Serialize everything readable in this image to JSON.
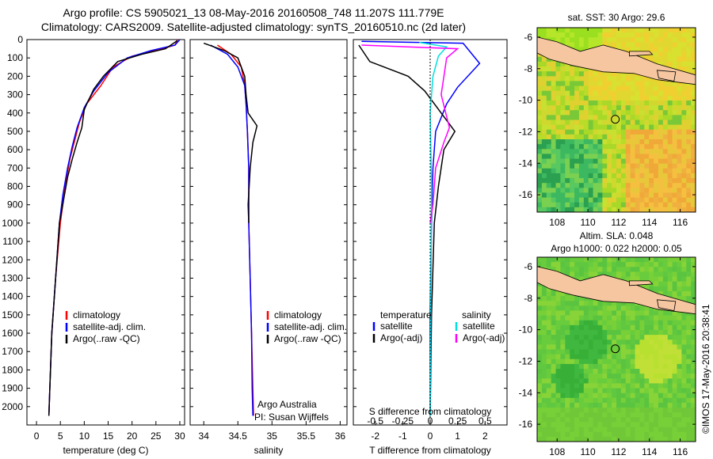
{
  "header": {
    "line1": "Argo profile: CS 5905021_13 08-May-2016 20160508_748 11.207S 111.779E",
    "line2": "Climatology: CARS2009. Satellite-adjusted climatology: synTS_20160510.nc (2d later)"
  },
  "timestamp": "©IMOS 17-May-2016 20:38:41",
  "colors": {
    "climatology": "#ff0000",
    "satellite": "#0000ff",
    "argo": "#000000",
    "sat_s": "#00e0e0",
    "argo_s": "#ff00ff"
  },
  "chart_data": [
    {
      "type": "line",
      "xlabel": "temperature (deg C)",
      "ylabel": "",
      "xticks": [
        "0",
        "5",
        "10",
        "15",
        "20",
        "25",
        "30"
      ],
      "xlim": [
        -2,
        31
      ],
      "ylim": [
        0,
        2100
      ],
      "yticks": [
        "0",
        "100",
        "200",
        "300",
        "400",
        "500",
        "600",
        "700",
        "800",
        "900",
        "1000",
        "1100",
        "1200",
        "1300",
        "1400",
        "1500",
        "1600",
        "1700",
        "1800",
        "1900",
        "2000"
      ],
      "legend": [
        "climatology",
        "satellite-adj. clim.",
        "Argo(..raw -QC)"
      ],
      "series": [
        {
          "name": "climatology",
          "values": [
            [
              29.5,
              0
            ],
            [
              29,
              30
            ],
            [
              25,
              60
            ],
            [
              20,
              90
            ],
            [
              16,
              150
            ],
            [
              13.5,
              250
            ],
            [
              10.5,
              350
            ],
            [
              9,
              450
            ],
            [
              8,
              550
            ],
            [
              7,
              650
            ],
            [
              6,
              800
            ],
            [
              5,
              1000
            ],
            [
              4,
              1300
            ],
            [
              3.2,
              1600
            ],
            [
              2.8,
              1900
            ],
            [
              2.6,
              2050
            ]
          ]
        },
        {
          "name": "satellite-adj. clim.",
          "values": [
            [
              30,
              0
            ],
            [
              29,
              30
            ],
            [
              24,
              60
            ],
            [
              19,
              100
            ],
            [
              15,
              180
            ],
            [
              12,
              280
            ],
            [
              10,
              370
            ],
            [
              8.5,
              480
            ],
            [
              7.5,
              580
            ],
            [
              6.5,
              700
            ],
            [
              5.5,
              850
            ],
            [
              4.8,
              1000
            ],
            [
              4,
              1300
            ],
            [
              3.2,
              1600
            ],
            [
              2.8,
              1900
            ],
            [
              2.6,
              2050
            ]
          ]
        },
        {
          "name": "Argo(..raw -QC)",
          "values": [
            [
              29.5,
              5
            ],
            [
              27,
              50
            ],
            [
              22,
              80
            ],
            [
              17,
              120
            ],
            [
              14,
              200
            ],
            [
              12,
              270
            ],
            [
              10,
              380
            ],
            [
              9.5,
              480
            ],
            [
              8.5,
              560
            ],
            [
              7.5,
              650
            ],
            [
              6.5,
              750
            ],
            [
              5.5,
              900
            ],
            [
              4.8,
              1000
            ],
            [
              4,
              1300
            ],
            [
              3.2,
              1600
            ],
            [
              2.8,
              1900
            ],
            [
              2.6,
              2050
            ]
          ]
        }
      ]
    },
    {
      "type": "line",
      "xlabel": "salinity",
      "xticks": [
        "34",
        "34.5",
        "35",
        "35.5",
        "36"
      ],
      "xlim": [
        33.8,
        36.1
      ],
      "ylim": [
        0,
        2100
      ],
      "legend": [
        "climatology",
        "satellite-adj. clim.",
        "Argo(..raw -QC)"
      ],
      "annotations": [
        "Argo Australia",
        "PI: Susan Wijffels"
      ],
      "series": [
        {
          "name": "climatology",
          "values": [
            [
              34.2,
              30
            ],
            [
              34.4,
              80
            ],
            [
              34.55,
              150
            ],
            [
              34.6,
              250
            ],
            [
              34.62,
              350
            ],
            [
              34.64,
              500
            ],
            [
              34.66,
              700
            ],
            [
              34.66,
              1000
            ],
            [
              34.68,
              1300
            ],
            [
              34.7,
              1600
            ],
            [
              34.72,
              1900
            ],
            [
              34.73,
              2050
            ]
          ]
        },
        {
          "name": "satellite-adj. clim.",
          "values": [
            [
              34.1,
              30
            ],
            [
              34.35,
              80
            ],
            [
              34.5,
              150
            ],
            [
              34.6,
              250
            ],
            [
              34.62,
              350
            ],
            [
              34.64,
              500
            ],
            [
              34.66,
              700
            ],
            [
              34.66,
              1000
            ],
            [
              34.68,
              1300
            ],
            [
              34.7,
              1600
            ],
            [
              34.71,
              1900
            ],
            [
              34.72,
              2050
            ]
          ]
        },
        {
          "name": "Argo(..raw -QC)",
          "values": [
            [
              34.0,
              20
            ],
            [
              34.3,
              60
            ],
            [
              34.5,
              100
            ],
            [
              34.6,
              200
            ],
            [
              34.62,
              300
            ],
            [
              34.65,
              400
            ],
            [
              34.78,
              470
            ],
            [
              34.72,
              560
            ],
            [
              34.68,
              700
            ],
            [
              34.65,
              900
            ],
            [
              34.66,
              1000
            ]
          ]
        }
      ]
    },
    {
      "type": "line",
      "xlabel": "T difference from climatology",
      "xlabel_top": "S difference from climatology",
      "xticks": [
        "-2",
        "-1",
        "0",
        "1",
        "2"
      ],
      "xticks_top": [
        "-0.5",
        "-0.25",
        "0",
        "0.25",
        "0.5"
      ],
      "xlim": [
        -2.8,
        2.8
      ],
      "ylim": [
        0,
        2100
      ],
      "legend_left_title": "temperature",
      "legend_right_title": "salinity",
      "legend": [
        "satellite",
        "Argo(-adj)",
        "satellite",
        "Argo(-adj)"
      ],
      "series": [
        {
          "name": "satellite",
          "values": [
            [
              -2.5,
              10
            ],
            [
              1.2,
              20
            ],
            [
              1.8,
              130
            ],
            [
              1.0,
              260
            ],
            [
              0.6,
              350
            ],
            [
              0.2,
              500
            ],
            [
              0.1,
              700
            ],
            [
              0.05,
              1000
            ],
            [
              0,
              1500
            ],
            [
              0,
              2050
            ]
          ]
        },
        {
          "name": "Argo(-adj)",
          "values": [
            [
              -2.6,
              30
            ],
            [
              -2.2,
              120
            ],
            [
              -0.8,
              200
            ],
            [
              -0.2,
              280
            ],
            [
              0.4,
              400
            ],
            [
              0.9,
              500
            ],
            [
              0.5,
              600
            ],
            [
              0.3,
              800
            ],
            [
              0.15,
              1000
            ],
            [
              0.05,
              1500
            ],
            [
              0,
              2050
            ]
          ]
        },
        {
          "name": "satellite",
          "values": [
            [
              -0.4,
              15
            ],
            [
              0.6,
              40
            ],
            [
              0.3,
              90
            ],
            [
              0.1,
              200
            ],
            [
              0.0,
              400
            ],
            [
              0.05,
              800
            ],
            [
              0.02,
              1500
            ],
            [
              0,
              2050
            ]
          ]
        },
        {
          "name": "Argo(-adj)",
          "values": [
            [
              -2.5,
              30
            ],
            [
              1.0,
              50
            ],
            [
              0.6,
              100
            ],
            [
              0.4,
              300
            ],
            [
              0.7,
              480
            ],
            [
              0.5,
              560
            ],
            [
              0.2,
              700
            ],
            [
              0.1,
              900
            ],
            [
              0.0,
              1000
            ]
          ]
        }
      ]
    },
    {
      "type": "heatmap",
      "title": "sat. SST: 30 Argo: 29.6",
      "xticks": [
        "108",
        "110",
        "112",
        "114",
        "116"
      ],
      "yticks": [
        "-6",
        "-8",
        "-10",
        "-12",
        "-14",
        "-16"
      ],
      "xlim": [
        106.7,
        117
      ],
      "ylim": [
        -17.1,
        -5.4
      ],
      "marker": [
        111.78,
        -11.21
      ]
    },
    {
      "type": "heatmap",
      "title_line1": "Altim. SLA: 0.048",
      "title_line2": "Argo h1000: 0.022 h2000: 0.05",
      "xticks": [
        "108",
        "110",
        "112",
        "114",
        "116"
      ],
      "yticks": [
        "-6",
        "-8",
        "-10",
        "-12",
        "-14",
        "-16"
      ],
      "xlim": [
        106.7,
        117
      ],
      "ylim": [
        -17.1,
        -5.4
      ],
      "marker": [
        111.78,
        -11.21
      ]
    }
  ]
}
